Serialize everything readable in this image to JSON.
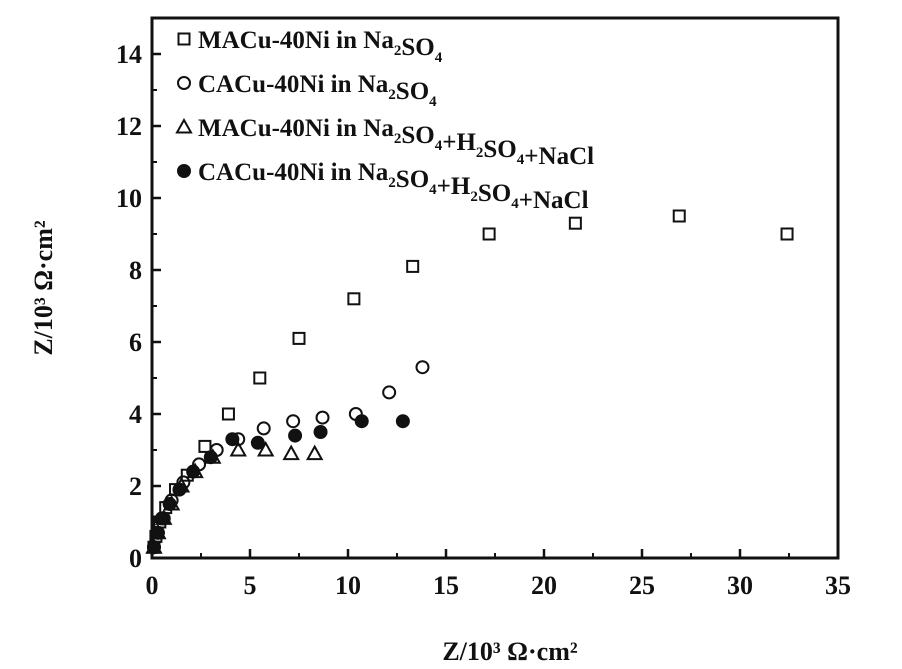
{
  "chart_data": {
    "type": "scatter",
    "title": "",
    "xlabel": "Z/10³ Ω·cm²",
    "ylabel": "Z/10³ Ω·cm²",
    "xlim": [
      0,
      35
    ],
    "ylim": [
      0,
      15
    ],
    "xticks": [
      0,
      5,
      10,
      15,
      20,
      25,
      30,
      35
    ],
    "yticks": [
      0,
      2,
      4,
      6,
      8,
      10,
      12,
      14
    ],
    "grid": false,
    "legend_position": "top-left",
    "series": [
      {
        "name": "MACu-40Ni in Na2SO4",
        "legend_main": "MACu-40Ni in Na",
        "legend_parts": [
          {
            "t": "MACu-40Ni in Na",
            "s": 0
          },
          {
            "t": "2",
            "s": 1
          },
          {
            "t": "SO",
            "s": 0
          },
          {
            "t": "4",
            "s": 1
          }
        ],
        "marker": "open-square",
        "color": "#111111",
        "x": [
          0.1,
          0.2,
          0.4,
          0.7,
          1.2,
          1.8,
          2.7,
          3.9,
          5.5,
          7.5,
          10.3,
          13.3,
          17.2,
          21.6,
          26.9,
          32.4
        ],
        "y": [
          0.3,
          0.6,
          1.0,
          1.4,
          1.9,
          2.3,
          3.1,
          4.0,
          5.0,
          6.1,
          7.2,
          8.1,
          9.0,
          9.3,
          9.5,
          9.0
        ]
      },
      {
        "name": "CACu-40Ni in Na2SO4",
        "legend_parts": [
          {
            "t": "CACu-40Ni in Na",
            "s": 0
          },
          {
            "t": "2",
            "s": 1
          },
          {
            "t": "SO",
            "s": 0
          },
          {
            "t": "4",
            "s": 1
          }
        ],
        "marker": "open-circle",
        "color": "#111111",
        "x": [
          0.1,
          0.3,
          0.6,
          1.0,
          1.6,
          2.4,
          3.3,
          4.4,
          5.7,
          7.2,
          8.7,
          10.4,
          12.1,
          13.8
        ],
        "y": [
          0.3,
          0.7,
          1.1,
          1.6,
          2.1,
          2.6,
          3.0,
          3.3,
          3.6,
          3.8,
          3.9,
          4.0,
          4.6,
          5.3
        ]
      },
      {
        "name": "MACu-40Ni in Na2SO4+H2SO4+NaCl",
        "legend_parts": [
          {
            "t": "MACu-40Ni in Na",
            "s": 0
          },
          {
            "t": "2",
            "s": 1
          },
          {
            "t": "SO",
            "s": 0
          },
          {
            "t": "4",
            "s": 1
          },
          {
            "t": "+H",
            "s": 0
          },
          {
            "t": "2",
            "s": 1
          },
          {
            "t": "SO",
            "s": 0
          },
          {
            "t": "4",
            "s": 1
          },
          {
            "t": "+NaCl",
            "s": 0
          }
        ],
        "marker": "open-triangle",
        "color": "#111111",
        "x": [
          0.1,
          0.3,
          0.6,
          1.0,
          1.5,
          2.2,
          3.1,
          4.4,
          5.8,
          7.1,
          8.3
        ],
        "y": [
          0.3,
          0.7,
          1.1,
          1.5,
          2.0,
          2.4,
          2.8,
          3.0,
          3.0,
          2.9,
          2.9
        ]
      },
      {
        "name": "CACu-40Ni in Na2SO4+H2SO4+NaCl",
        "legend_parts": [
          {
            "t": "CACu-40Ni in Na",
            "s": 0
          },
          {
            "t": "2",
            "s": 1
          },
          {
            "t": "SO",
            "s": 0
          },
          {
            "t": "4",
            "s": 1
          },
          {
            "t": "+H",
            "s": 0
          },
          {
            "t": "2",
            "s": 1
          },
          {
            "t": "SO",
            "s": 0
          },
          {
            "t": "4",
            "s": 1
          },
          {
            "t": "+NaCl",
            "s": 0
          }
        ],
        "marker": "filled-circle",
        "color": "#111111",
        "x": [
          0.1,
          0.3,
          0.5,
          0.9,
          1.4,
          2.1,
          3.0,
          4.1,
          5.4,
          7.3,
          8.6,
          10.7,
          12.8
        ],
        "y": [
          0.3,
          0.7,
          1.1,
          1.5,
          1.9,
          2.4,
          2.8,
          3.3,
          3.2,
          3.4,
          3.5,
          3.8,
          3.8
        ]
      }
    ]
  }
}
